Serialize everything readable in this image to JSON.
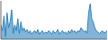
{
  "chart_data": {
    "type": "area",
    "values": [
      60,
      50,
      75,
      40,
      80,
      55,
      65,
      85,
      45,
      60,
      50,
      70,
      45,
      65,
      50,
      55,
      48,
      52,
      46,
      50,
      44,
      48,
      50,
      46,
      52,
      44,
      48,
      50,
      45,
      48,
      46,
      50,
      48,
      44,
      50,
      46,
      48,
      52,
      44,
      48,
      50,
      46,
      48,
      44,
      50,
      46,
      52,
      48,
      50,
      46,
      50,
      48,
      55,
      52,
      48,
      50,
      46,
      80,
      95,
      70,
      65,
      55,
      50,
      48,
      45,
      48,
      50,
      46,
      48,
      50
    ],
    "xlim": [
      0,
      69
    ],
    "ylim": [
      36,
      100
    ],
    "tick_labels": false
  }
}
